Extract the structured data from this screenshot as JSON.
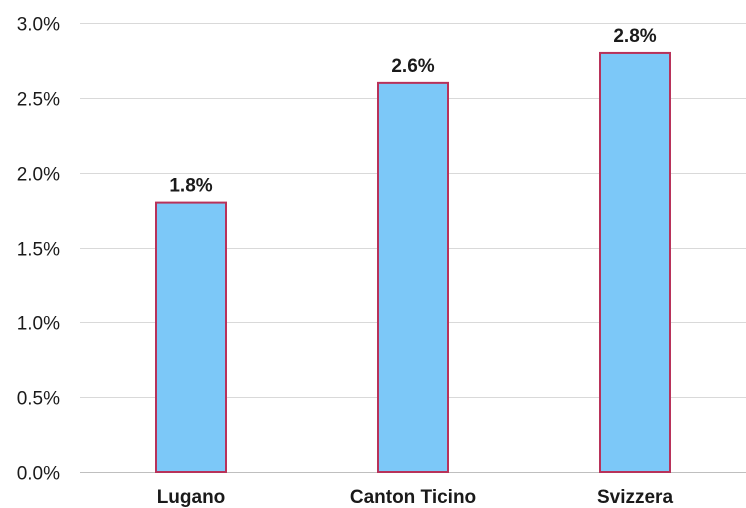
{
  "chart_data": {
    "type": "bar",
    "categories": [
      "Lugano",
      "Canton Ticino",
      "Svizzera"
    ],
    "values": [
      1.8,
      2.6,
      2.8
    ],
    "data_labels": [
      "1.8%",
      "2.6%",
      "2.8%"
    ],
    "title": "",
    "xlabel": "",
    "ylabel": "",
    "ylim": [
      0,
      3.0
    ],
    "yticks": [
      0.0,
      0.5,
      1.0,
      1.5,
      2.0,
      2.5,
      3.0
    ],
    "ytick_labels": [
      "0.0%",
      "0.5%",
      "1.0%",
      "1.5%",
      "2.0%",
      "2.5%",
      "3.0%"
    ],
    "grid": true,
    "legend": "none",
    "colors": {
      "bar_fill": "#7cc8f8",
      "bar_stroke": "#b8325a",
      "grid": "#d9d9d9",
      "text": "#1a1a1a"
    }
  }
}
